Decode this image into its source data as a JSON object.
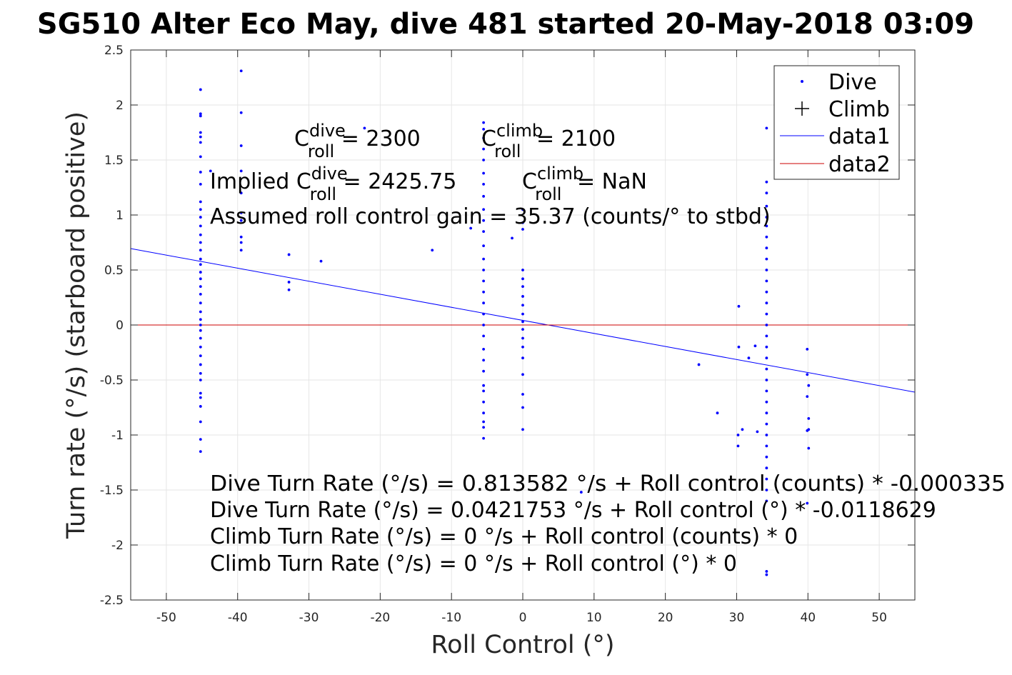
{
  "chart_data": {
    "type": "scatter",
    "title": "SG510 Alter Eco May, dive 481 started 20-May-2018 03:09",
    "xlabel": "Roll Control (°)",
    "ylabel": "Turn rate (°/s) (starboard positive)",
    "xlim": [
      -55,
      55
    ],
    "ylim": [
      -2.5,
      2.5
    ],
    "xticks": [
      -50,
      -40,
      -30,
      -20,
      -10,
      0,
      10,
      20,
      30,
      40,
      50
    ],
    "yticks": [
      -2.5,
      -2,
      -1.5,
      -1,
      -0.5,
      0,
      0.5,
      1,
      1.5,
      2,
      2.5
    ],
    "xtick_labels": [
      "-50",
      "-40",
      "-30",
      "-20",
      "-10",
      "0",
      "10",
      "20",
      "30",
      "40",
      "50"
    ],
    "ytick_labels": [
      "-2.5",
      "-2",
      "-1.5",
      "-1",
      "-0.5",
      "0",
      "0.5",
      "1",
      "1.5",
      "2",
      "2.5"
    ],
    "grid": true,
    "legend_position": "top-right",
    "legend": [
      {
        "label": "Dive",
        "marker": "dot",
        "color": "#0000ff"
      },
      {
        "label": "Climb",
        "marker": "plus",
        "color": "#000000"
      },
      {
        "label": "data1",
        "marker": "line",
        "color": "#0000ff"
      },
      {
        "label": "data2",
        "marker": "line",
        "color": "#cc0000"
      }
    ],
    "series": [
      {
        "name": "Dive",
        "kind": "points",
        "color": "#0000ff",
        "points": [
          [
            -45.2,
            2.14
          ],
          [
            -45.2,
            1.92
          ],
          [
            -45.2,
            1.9
          ],
          [
            -45.2,
            1.75
          ],
          [
            -45.2,
            1.71
          ],
          [
            -45.2,
            1.66
          ],
          [
            -45.2,
            1.53
          ],
          [
            -45.2,
            1.39
          ],
          [
            -45.2,
            1.28
          ],
          [
            -45.2,
            1.12
          ],
          [
            -45.2,
            1.05
          ],
          [
            -45.2,
            0.98
          ],
          [
            -45.2,
            0.9
          ],
          [
            -45.2,
            0.82
          ],
          [
            -45.2,
            0.75
          ],
          [
            -45.2,
            0.68
          ],
          [
            -45.2,
            0.6
          ],
          [
            -45.2,
            0.55
          ],
          [
            -45.2,
            0.48
          ],
          [
            -45.2,
            0.42
          ],
          [
            -45.2,
            0.35
          ],
          [
            -45.2,
            0.28
          ],
          [
            -45.2,
            0.2
          ],
          [
            -45.2,
            0.12
          ],
          [
            -45.2,
            0.05
          ],
          [
            -45.2,
            0.0
          ],
          [
            -45.2,
            -0.05
          ],
          [
            -45.2,
            -0.12
          ],
          [
            -45.2,
            -0.2
          ],
          [
            -45.2,
            -0.28
          ],
          [
            -45.2,
            -0.36
          ],
          [
            -45.2,
            -0.44
          ],
          [
            -45.2,
            -0.5
          ],
          [
            -45.2,
            -0.62
          ],
          [
            -45.2,
            -0.66
          ],
          [
            -45.2,
            -0.74
          ],
          [
            -45.2,
            -0.88
          ],
          [
            -45.2,
            -1.04
          ],
          [
            -45.2,
            -1.15
          ],
          [
            -43.8,
            1.4
          ],
          [
            -39.5,
            2.31
          ],
          [
            -39.5,
            1.93
          ],
          [
            -39.5,
            1.63
          ],
          [
            -39.5,
            1.4
          ],
          [
            -39.5,
            1.2
          ],
          [
            -39.5,
            1.02
          ],
          [
            -39.5,
            0.95
          ],
          [
            -39.5,
            0.8
          ],
          [
            -39.5,
            0.75
          ],
          [
            -39.5,
            0.68
          ],
          [
            -32.8,
            0.64
          ],
          [
            -32.8,
            0.39
          ],
          [
            -32.8,
            0.32
          ],
          [
            -28.3,
            0.58
          ],
          [
            -22.2,
            1.79
          ],
          [
            -12.7,
            0.68
          ],
          [
            -7.3,
            0.88
          ],
          [
            -5.5,
            1.84
          ],
          [
            -5.5,
            1.78
          ],
          [
            -5.5,
            1.7
          ],
          [
            -5.5,
            1.6
          ],
          [
            -5.5,
            1.5
          ],
          [
            -5.5,
            1.38
          ],
          [
            -5.5,
            1.28
          ],
          [
            -5.5,
            1.17
          ],
          [
            -5.5,
            1.05
          ],
          [
            -5.5,
            0.95
          ],
          [
            -5.5,
            0.85
          ],
          [
            -5.5,
            0.72
          ],
          [
            -5.5,
            0.6
          ],
          [
            -5.5,
            0.5
          ],
          [
            -5.5,
            0.4
          ],
          [
            -5.5,
            0.3
          ],
          [
            -5.5,
            0.2
          ],
          [
            -5.5,
            0.1
          ],
          [
            -5.5,
            0.0
          ],
          [
            -5.5,
            -0.1
          ],
          [
            -5.5,
            -0.22
          ],
          [
            -5.5,
            -0.32
          ],
          [
            -5.5,
            -0.42
          ],
          [
            -5.5,
            -0.55
          ],
          [
            -5.5,
            -0.6
          ],
          [
            -5.5,
            -0.7
          ],
          [
            -5.5,
            -0.8
          ],
          [
            -5.5,
            -0.88
          ],
          [
            -5.5,
            -0.93
          ],
          [
            -5.5,
            -1.03
          ],
          [
            -1.5,
            0.79
          ],
          [
            0.0,
            1.05
          ],
          [
            0.0,
            0.93
          ],
          [
            0.0,
            0.87
          ],
          [
            0.0,
            0.5
          ],
          [
            0.0,
            0.42
          ],
          [
            0.0,
            0.35
          ],
          [
            0.0,
            0.26
          ],
          [
            0.0,
            0.18
          ],
          [
            0.0,
            0.1
          ],
          [
            0.0,
            0.03
          ],
          [
            0.0,
            -0.04
          ],
          [
            0.0,
            -0.12
          ],
          [
            0.0,
            -0.2
          ],
          [
            0.0,
            -0.3
          ],
          [
            0.0,
            -0.45
          ],
          [
            0.0,
            -0.63
          ],
          [
            0.0,
            -0.75
          ],
          [
            0.0,
            -0.95
          ],
          [
            8.2,
            -1.52
          ],
          [
            24.7,
            -0.36
          ],
          [
            27.3,
            -0.8
          ],
          [
            30.2,
            -1.0
          ],
          [
            30.2,
            -1.1
          ],
          [
            30.3,
            0.17
          ],
          [
            30.3,
            -0.2
          ],
          [
            30.8,
            -0.95
          ],
          [
            31.7,
            -0.3
          ],
          [
            32.6,
            -0.19
          ],
          [
            32.9,
            -0.97
          ],
          [
            34.2,
            1.79
          ],
          [
            34.2,
            1.3
          ],
          [
            34.2,
            1.2
          ],
          [
            34.2,
            1.08
          ],
          [
            34.2,
            0.98
          ],
          [
            34.2,
            0.9
          ],
          [
            34.2,
            0.8
          ],
          [
            34.2,
            0.7
          ],
          [
            34.2,
            0.6
          ],
          [
            34.2,
            0.5
          ],
          [
            34.2,
            0.4
          ],
          [
            34.2,
            0.3
          ],
          [
            34.2,
            0.2
          ],
          [
            34.2,
            0.1
          ],
          [
            34.2,
            0.0
          ],
          [
            34.2,
            -0.1
          ],
          [
            34.2,
            -0.2
          ],
          [
            34.2,
            -0.3
          ],
          [
            34.2,
            -0.4
          ],
          [
            34.2,
            -0.5
          ],
          [
            34.2,
            -0.6
          ],
          [
            34.2,
            -0.7
          ],
          [
            34.2,
            -0.8
          ],
          [
            34.2,
            -0.9
          ],
          [
            34.2,
            -1.0
          ],
          [
            34.2,
            -1.1
          ],
          [
            34.2,
            -1.2
          ],
          [
            34.2,
            -1.3
          ],
          [
            34.2,
            -1.4
          ],
          [
            34.2,
            -1.5
          ],
          [
            34.2,
            -1.6
          ],
          [
            34.2,
            -2.24
          ],
          [
            34.2,
            -2.27
          ],
          [
            39.9,
            -0.22
          ],
          [
            39.9,
            -0.45
          ],
          [
            40.1,
            -0.55
          ],
          [
            39.9,
            -0.65
          ],
          [
            40.1,
            -0.85
          ],
          [
            40.1,
            -0.95
          ],
          [
            39.9,
            -0.96
          ],
          [
            40.1,
            -1.12
          ],
          [
            39.9,
            -1.62
          ]
        ]
      },
      {
        "name": "Climb",
        "kind": "points",
        "color": "#000000",
        "points": []
      },
      {
        "name": "data1",
        "kind": "line",
        "color": "#0000ff",
        "x": [
          -55,
          55
        ],
        "y": [
          0.6946,
          -0.6104
        ]
      },
      {
        "name": "data2",
        "kind": "line",
        "color": "#cc0000",
        "x": [
          -55,
          55
        ],
        "y": [
          0,
          0
        ]
      }
    ]
  },
  "annotations": {
    "c_dive_base": "C",
    "c_dive_sup": "dive",
    "c_dive_sub": "roll",
    "c_dive_value": " = 2300",
    "c_climb_base": "C",
    "c_climb_sup": "climb",
    "c_climb_sub": "roll",
    "c_climb_value": " = 2100",
    "implied_prefix": "Implied C",
    "implied_dive_sup": "dive",
    "implied_dive_sub": "roll",
    "implied_dive_value": " = 2425.75",
    "implied_climb_base": "C",
    "implied_climb_sup": "climb",
    "implied_climb_sub": "roll",
    "implied_climb_value": " = NaN",
    "gain": "Assumed roll control gain = 35.37 (counts/° to stbd)",
    "eq1": "Dive Turn Rate (°/s) = 0.813582 °/s + Roll control (counts) * -0.000335",
    "eq2": "Dive Turn Rate (°/s) = 0.0421753 °/s + Roll control (°) * -0.0118629",
    "eq3": "Climb Turn Rate (°/s) = 0 °/s + Roll control (counts) * 0",
    "eq4": "Climb Turn Rate (°/s) = 0 °/s + Roll control (°) * 0"
  }
}
